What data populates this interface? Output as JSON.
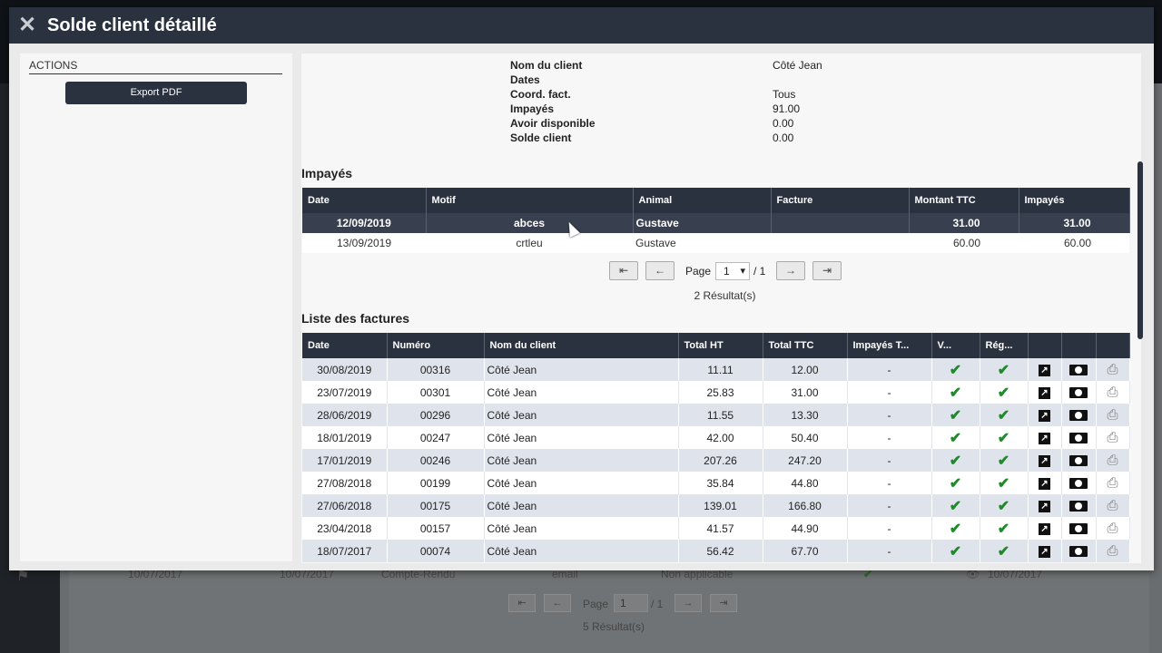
{
  "background": {
    "row": [
      "10/07/2017",
      "10/07/2017",
      "Compte-Rendu",
      "email",
      "Non applicable",
      "10/07/2017"
    ],
    "pager": {
      "first": "⇤",
      "prev": "←",
      "page_label": "Page",
      "page_value": "1",
      "of": "/ 1",
      "next": "→",
      "last": "⇥"
    },
    "result": "5 Résultat(s)"
  },
  "modal": {
    "title": "Solde client détaillé",
    "close_icon": "close-icon"
  },
  "sidebar": {
    "title": "ACTIONS",
    "export_label": "Export PDF"
  },
  "summary": [
    {
      "label": "Nom du client",
      "value": "Côté Jean"
    },
    {
      "label": "Dates",
      "value": ""
    },
    {
      "label": "Coord. fact.",
      "value": "Tous"
    },
    {
      "label": "Impayés",
      "value": "91.00"
    },
    {
      "label": "Avoir disponible",
      "value": "0.00"
    },
    {
      "label": "Solde client",
      "value": "0.00"
    }
  ],
  "unpaid": {
    "title": "Impayés",
    "headers": [
      "Date",
      "Motif",
      "Animal",
      "Facture",
      "Montant TTC",
      "Impayés"
    ],
    "rows": [
      {
        "date": "12/09/2019",
        "motif": "abces",
        "animal": "Gustave",
        "facture": "",
        "montant": "31.00",
        "impayes": "31.00",
        "selected": true
      },
      {
        "date": "13/09/2019",
        "motif": "crtleu",
        "animal": "Gustave",
        "facture": "",
        "montant": "60.00",
        "impayes": "60.00",
        "selected": false
      }
    ],
    "pager": {
      "first": "⇤",
      "prev": "←",
      "page_label": "Page",
      "page_value": "1",
      "of": "/ 1",
      "next": "→",
      "last": "⇥"
    },
    "result": "2 Résultat(s)"
  },
  "invoices": {
    "title": "Liste des factures",
    "headers": [
      "Date",
      "Numéro",
      "Nom du client",
      "Total HT",
      "Total TTC",
      "Impayés T...",
      "V...",
      "Rég...",
      "",
      "",
      ""
    ],
    "rows": [
      {
        "date": "30/08/2019",
        "numero": "00316",
        "client": "Côté Jean",
        "ht": "11.11",
        "ttc": "12.00",
        "impayes": "-"
      },
      {
        "date": "23/07/2019",
        "numero": "00301",
        "client": "Côté Jean",
        "ht": "25.83",
        "ttc": "31.00",
        "impayes": "-"
      },
      {
        "date": "28/06/2019",
        "numero": "00296",
        "client": "Côté Jean",
        "ht": "11.55",
        "ttc": "13.30",
        "impayes": "-"
      },
      {
        "date": "18/01/2019",
        "numero": "00247",
        "client": "Côté Jean",
        "ht": "42.00",
        "ttc": "50.40",
        "impayes": "-"
      },
      {
        "date": "17/01/2019",
        "numero": "00246",
        "client": "Côté Jean",
        "ht": "207.26",
        "ttc": "247.20",
        "impayes": "-"
      },
      {
        "date": "27/08/2018",
        "numero": "00199",
        "client": "Côté Jean",
        "ht": "35.84",
        "ttc": "44.80",
        "impayes": "-"
      },
      {
        "date": "27/06/2018",
        "numero": "00175",
        "client": "Côté Jean",
        "ht": "139.01",
        "ttc": "166.80",
        "impayes": "-"
      },
      {
        "date": "23/04/2018",
        "numero": "00157",
        "client": "Côté Jean",
        "ht": "41.57",
        "ttc": "44.90",
        "impayes": "-"
      },
      {
        "date": "18/07/2017",
        "numero": "00074",
        "client": "Côté Jean",
        "ht": "56.42",
        "ttc": "67.70",
        "impayes": "-"
      }
    ],
    "icons": {
      "check": "✔",
      "edit": "↗",
      "print": "⎙"
    }
  }
}
